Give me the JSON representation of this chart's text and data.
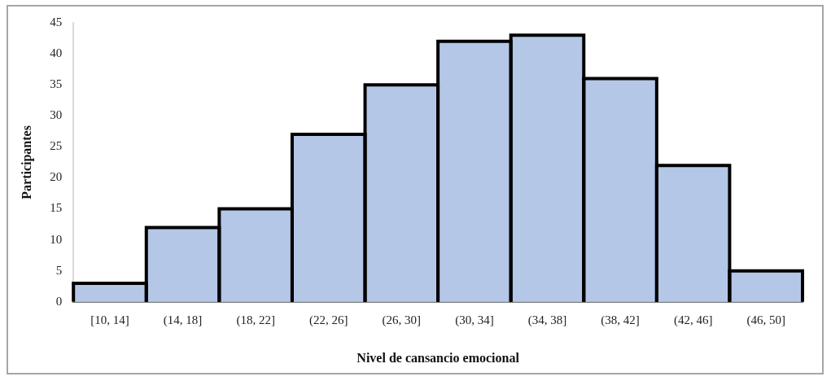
{
  "chart_data": {
    "type": "bar",
    "xlabel": "Nivel de cansancio emocional",
    "ylabel": "Participantes",
    "categories": [
      "[10, 14]",
      "(14, 18]",
      "(18, 22]",
      "(22, 26]",
      "(26, 30]",
      "(30, 34]",
      "(34, 38]",
      "(38, 42]",
      "(42, 46]",
      "(46, 50]"
    ],
    "values": [
      3,
      12,
      15,
      27,
      35,
      42,
      43,
      36,
      22,
      5
    ],
    "color": "#b4c7e7",
    "ylim": [
      0,
      45
    ],
    "yticks": [
      0,
      5,
      10,
      15,
      20,
      25,
      30,
      35,
      40,
      45
    ],
    "grid": false,
    "legend": false
  }
}
